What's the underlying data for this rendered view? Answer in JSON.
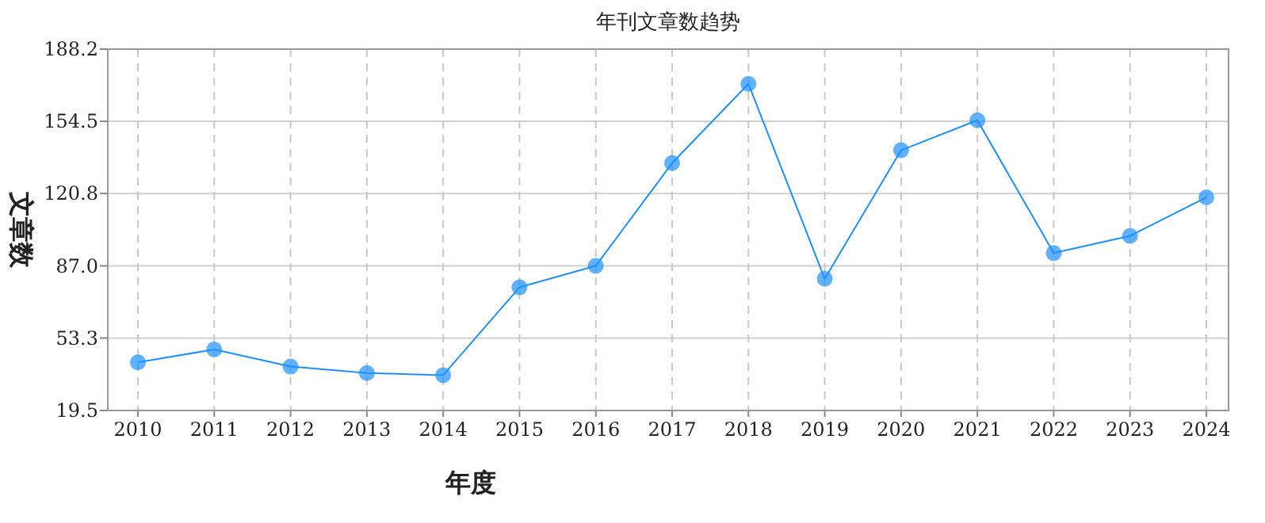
{
  "chart_data": {
    "type": "line",
    "title": "年刊文章数趋势",
    "xlabel": "年度",
    "ylabel": "文章数",
    "categories": [
      "2010",
      "2011",
      "2012",
      "2013",
      "2014",
      "2015",
      "2016",
      "2017",
      "2018",
      "2019",
      "2020",
      "2021",
      "2022",
      "2023",
      "2024"
    ],
    "series": [
      {
        "color": "#1e90ff",
        "values": [
          42,
          48,
          40,
          37,
          36,
          77,
          87,
          135,
          172,
          81,
          141,
          155,
          93,
          101,
          119
        ]
      }
    ],
    "ylim": [
      19.5,
      188.2
    ],
    "yticks": [
      19.5,
      53.3,
      {
        "value": 87,
        "label": "87.0"
      },
      {
        "value": 120.8,
        "label": "120.8"
      },
      154.5,
      188.2
    ],
    "grid": true,
    "marker": "circle",
    "line_style": "solid"
  }
}
